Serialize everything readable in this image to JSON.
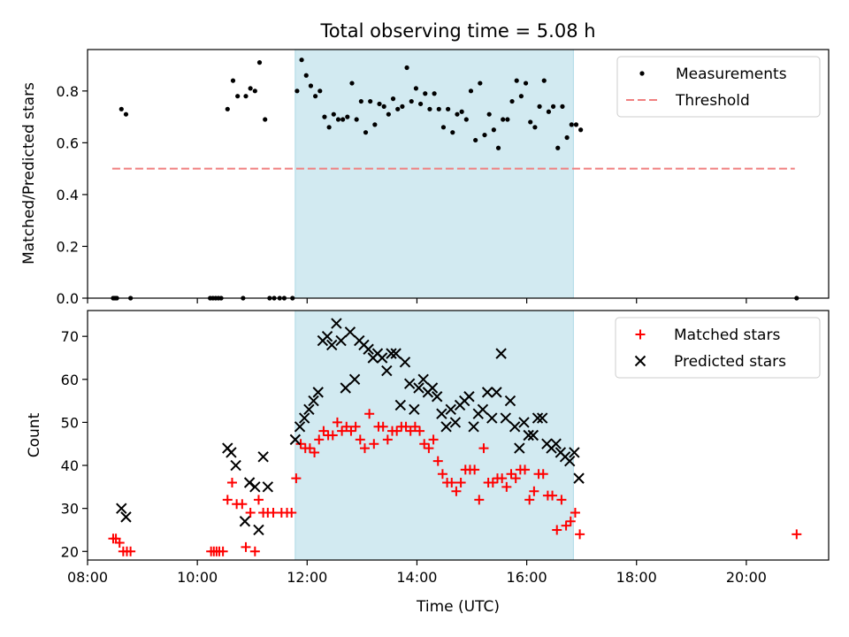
{
  "figure": {
    "title": "Total observing time = 5.08 h"
  },
  "chart_data": [
    {
      "type": "scatter",
      "panel": "top",
      "ylabel": "Matched/Predicted stars",
      "xlabel": "",
      "xlim": [
        "08:00",
        "21:30"
      ],
      "ylim": [
        0,
        0.96
      ],
      "yticks": [
        "0.0",
        "0.2",
        "0.4",
        "0.6",
        "0.8"
      ],
      "ytick_values": [
        0,
        0.2,
        0.4,
        0.6,
        0.8
      ],
      "grid": false,
      "legend": "top-right",
      "shaded_interval": {
        "start": "11:47",
        "end": "16:51",
        "color": "#add8e6"
      },
      "threshold": {
        "name": "Threshold",
        "value": 0.5,
        "from": "08:27",
        "to": "20:53",
        "color": "#f08080"
      },
      "series": [
        {
          "name": "Measurements",
          "marker": "dot",
          "color": "#000000",
          "points": [
            [
              "08:28",
              0
            ],
            [
              "08:30",
              0
            ],
            [
              "08:32",
              0
            ],
            [
              "08:37",
              0.73
            ],
            [
              "08:42",
              0.71
            ],
            [
              "08:47",
              0
            ],
            [
              "10:14",
              0
            ],
            [
              "10:17",
              0
            ],
            [
              "10:20",
              0
            ],
            [
              "10:23",
              0
            ],
            [
              "10:26",
              0
            ],
            [
              "10:33",
              0.73
            ],
            [
              "10:39",
              0.84
            ],
            [
              "10:44",
              0.78
            ],
            [
              "10:50",
              0
            ],
            [
              "10:53",
              0.78
            ],
            [
              "10:58",
              0.81
            ],
            [
              "11:03",
              0.8
            ],
            [
              "11:08",
              0.91
            ],
            [
              "11:14",
              0.69
            ],
            [
              "11:19",
              0
            ],
            [
              "11:24",
              0
            ],
            [
              "11:30",
              0
            ],
            [
              "11:35",
              0
            ],
            [
              "11:44",
              0
            ],
            [
              "11:49",
              0.8
            ],
            [
              "11:54",
              0.92
            ],
            [
              "11:59",
              0.86
            ],
            [
              "12:04",
              0.82
            ],
            [
              "12:09",
              0.78
            ],
            [
              "12:14",
              0.8
            ],
            [
              "12:19",
              0.7
            ],
            [
              "12:24",
              0.66
            ],
            [
              "12:29",
              0.71
            ],
            [
              "12:34",
              0.69
            ],
            [
              "12:39",
              0.69
            ],
            [
              "12:44",
              0.7
            ],
            [
              "12:49",
              0.83
            ],
            [
              "12:54",
              0.69
            ],
            [
              "12:59",
              0.76
            ],
            [
              "13:04",
              0.64
            ],
            [
              "13:09",
              0.76
            ],
            [
              "13:14",
              0.67
            ],
            [
              "13:19",
              0.75
            ],
            [
              "13:24",
              0.74
            ],
            [
              "13:29",
              0.71
            ],
            [
              "13:34",
              0.77
            ],
            [
              "13:39",
              0.73
            ],
            [
              "13:44",
              0.74
            ],
            [
              "13:49",
              0.89
            ],
            [
              "13:54",
              0.76
            ],
            [
              "13:59",
              0.81
            ],
            [
              "14:04",
              0.75
            ],
            [
              "14:09",
              0.79
            ],
            [
              "14:14",
              0.73
            ],
            [
              "14:19",
              0.79
            ],
            [
              "14:24",
              0.73
            ],
            [
              "14:29",
              0.66
            ],
            [
              "14:34",
              0.73
            ],
            [
              "14:39",
              0.64
            ],
            [
              "14:44",
              0.71
            ],
            [
              "14:49",
              0.72
            ],
            [
              "14:54",
              0.69
            ],
            [
              "14:59",
              0.8
            ],
            [
              "15:04",
              0.61
            ],
            [
              "15:09",
              0.83
            ],
            [
              "15:14",
              0.63
            ],
            [
              "15:19",
              0.71
            ],
            [
              "15:24",
              0.65
            ],
            [
              "15:29",
              0.58
            ],
            [
              "15:34",
              0.69
            ],
            [
              "15:39",
              0.69
            ],
            [
              "15:44",
              0.76
            ],
            [
              "15:49",
              0.84
            ],
            [
              "15:54",
              0.78
            ],
            [
              "15:59",
              0.83
            ],
            [
              "16:04",
              0.68
            ],
            [
              "16:09",
              0.66
            ],
            [
              "16:14",
              0.74
            ],
            [
              "16:19",
              0.84
            ],
            [
              "16:24",
              0.72
            ],
            [
              "16:29",
              0.74
            ],
            [
              "16:34",
              0.58
            ],
            [
              "16:39",
              0.74
            ],
            [
              "16:44",
              0.62
            ],
            [
              "16:49",
              0.67
            ],
            [
              "16:54",
              0.67
            ],
            [
              "16:59",
              0.65
            ],
            [
              "20:55",
              0
            ]
          ]
        }
      ]
    },
    {
      "type": "scatter",
      "panel": "bottom",
      "xlabel": "Time (UTC)",
      "ylabel": "Count",
      "xlim": [
        "08:00",
        "21:30"
      ],
      "ylim": [
        18,
        76
      ],
      "xticks": [
        "08:00",
        "10:00",
        "12:00",
        "14:00",
        "16:00",
        "18:00",
        "20:00"
      ],
      "yticks": [
        "20",
        "30",
        "40",
        "50",
        "60",
        "70"
      ],
      "ytick_values": [
        20,
        30,
        40,
        50,
        60,
        70
      ],
      "grid": false,
      "legend": "top-right",
      "shaded_interval": {
        "start": "11:47",
        "end": "16:51",
        "color": "#add8e6"
      },
      "series": [
        {
          "name": "Matched stars",
          "marker": "plus",
          "color": "#ff0000",
          "points": [
            [
              "08:28",
              23
            ],
            [
              "08:31",
              23
            ],
            [
              "08:35",
              22
            ],
            [
              "08:39",
              20
            ],
            [
              "08:43",
              20
            ],
            [
              "08:47",
              20
            ],
            [
              "10:15",
              20
            ],
            [
              "10:18",
              20
            ],
            [
              "10:21",
              20
            ],
            [
              "10:24",
              20
            ],
            [
              "10:28",
              20
            ],
            [
              "10:33",
              32
            ],
            [
              "10:38",
              36
            ],
            [
              "10:43",
              31
            ],
            [
              "10:49",
              31
            ],
            [
              "10:53",
              21
            ],
            [
              "10:58",
              29
            ],
            [
              "11:03",
              20
            ],
            [
              "11:07",
              32
            ],
            [
              "11:12",
              29
            ],
            [
              "11:17",
              29
            ],
            [
              "11:23",
              29
            ],
            [
              "11:32",
              29
            ],
            [
              "11:38",
              29
            ],
            [
              "11:43",
              29
            ],
            [
              "11:48",
              37
            ],
            [
              "11:53",
              45
            ],
            [
              "11:58",
              44
            ],
            [
              "12:03",
              44
            ],
            [
              "12:08",
              43
            ],
            [
              "12:13",
              46
            ],
            [
              "12:18",
              48
            ],
            [
              "12:23",
              47
            ],
            [
              "12:28",
              47
            ],
            [
              "12:33",
              50
            ],
            [
              "12:38",
              48
            ],
            [
              "12:43",
              49
            ],
            [
              "12:48",
              48
            ],
            [
              "12:53",
              49
            ],
            [
              "12:58",
              46
            ],
            [
              "13:03",
              44
            ],
            [
              "13:08",
              52
            ],
            [
              "13:13",
              45
            ],
            [
              "13:18",
              49
            ],
            [
              "13:23",
              49
            ],
            [
              "13:28",
              46
            ],
            [
              "13:33",
              48
            ],
            [
              "13:38",
              48
            ],
            [
              "13:43",
              49
            ],
            [
              "13:48",
              49
            ],
            [
              "13:53",
              48
            ],
            [
              "13:58",
              49
            ],
            [
              "14:03",
              48
            ],
            [
              "14:08",
              45
            ],
            [
              "14:13",
              44
            ],
            [
              "14:18",
              46
            ],
            [
              "14:23",
              41
            ],
            [
              "14:28",
              38
            ],
            [
              "14:33",
              36
            ],
            [
              "14:38",
              36
            ],
            [
              "14:43",
              34
            ],
            [
              "14:48",
              36
            ],
            [
              "14:53",
              39
            ],
            [
              "14:58",
              39
            ],
            [
              "15:03",
              39
            ],
            [
              "15:08",
              32
            ],
            [
              "15:13",
              44
            ],
            [
              "15:18",
              36
            ],
            [
              "15:23",
              36
            ],
            [
              "15:28",
              37
            ],
            [
              "15:33",
              37
            ],
            [
              "15:38",
              35
            ],
            [
              "15:43",
              38
            ],
            [
              "15:48",
              37
            ],
            [
              "15:53",
              39
            ],
            [
              "15:58",
              39
            ],
            [
              "16:03",
              32
            ],
            [
              "16:08",
              34
            ],
            [
              "16:13",
              38
            ],
            [
              "16:18",
              38
            ],
            [
              "16:23",
              33
            ],
            [
              "16:28",
              33
            ],
            [
              "16:33",
              25
            ],
            [
              "16:38",
              32
            ],
            [
              "16:43",
              26
            ],
            [
              "16:48",
              27
            ],
            [
              "16:53",
              29
            ],
            [
              "16:58",
              24
            ],
            [
              "20:55",
              24
            ]
          ]
        },
        {
          "name": "Predicted stars",
          "marker": "x",
          "color": "#000000",
          "points": [
            [
              "08:37",
              30
            ],
            [
              "08:42",
              28
            ],
            [
              "10:33",
              44
            ],
            [
              "10:37",
              43
            ],
            [
              "10:42",
              40
            ],
            [
              "10:52",
              27
            ],
            [
              "10:57",
              36
            ],
            [
              "11:03",
              35
            ],
            [
              "11:07",
              25
            ],
            [
              "11:12",
              42
            ],
            [
              "11:17",
              35
            ],
            [
              "11:47",
              46
            ],
            [
              "11:52",
              49
            ],
            [
              "11:57",
              51
            ],
            [
              "12:02",
              53
            ],
            [
              "12:07",
              55
            ],
            [
              "12:12",
              57
            ],
            [
              "12:17",
              69
            ],
            [
              "12:22",
              70
            ],
            [
              "12:27",
              68
            ],
            [
              "12:32",
              73
            ],
            [
              "12:37",
              69
            ],
            [
              "12:42",
              58
            ],
            [
              "12:47",
              71
            ],
            [
              "12:52",
              60
            ],
            [
              "12:57",
              69
            ],
            [
              "13:02",
              68
            ],
            [
              "13:07",
              67
            ],
            [
              "13:12",
              65
            ],
            [
              "13:17",
              66
            ],
            [
              "13:22",
              65
            ],
            [
              "13:27",
              62
            ],
            [
              "13:32",
              66
            ],
            [
              "13:37",
              66
            ],
            [
              "13:42",
              54
            ],
            [
              "13:47",
              64
            ],
            [
              "13:52",
              59
            ],
            [
              "13:57",
              53
            ],
            [
              "14:02",
              58
            ],
            [
              "14:07",
              60
            ],
            [
              "14:12",
              57
            ],
            [
              "14:17",
              58
            ],
            [
              "14:22",
              56
            ],
            [
              "14:27",
              52
            ],
            [
              "14:32",
              49
            ],
            [
              "14:37",
              53
            ],
            [
              "14:42",
              50
            ],
            [
              "14:47",
              54
            ],
            [
              "14:52",
              55
            ],
            [
              "14:57",
              56
            ],
            [
              "15:02",
              49
            ],
            [
              "15:07",
              52
            ],
            [
              "15:12",
              53
            ],
            [
              "15:17",
              57
            ],
            [
              "15:22",
              51
            ],
            [
              "15:27",
              57
            ],
            [
              "15:32",
              66
            ],
            [
              "15:37",
              51
            ],
            [
              "15:42",
              55
            ],
            [
              "15:47",
              49
            ],
            [
              "15:52",
              44
            ],
            [
              "15:57",
              50
            ],
            [
              "16:02",
              47
            ],
            [
              "16:07",
              47
            ],
            [
              "16:12",
              51
            ],
            [
              "16:17",
              51
            ],
            [
              "16:22",
              45
            ],
            [
              "16:27",
              44
            ],
            [
              "16:32",
              45
            ],
            [
              "16:37",
              43
            ],
            [
              "16:42",
              42
            ],
            [
              "16:47",
              41
            ],
            [
              "16:52",
              43
            ],
            [
              "16:57",
              37
            ]
          ]
        }
      ]
    }
  ]
}
